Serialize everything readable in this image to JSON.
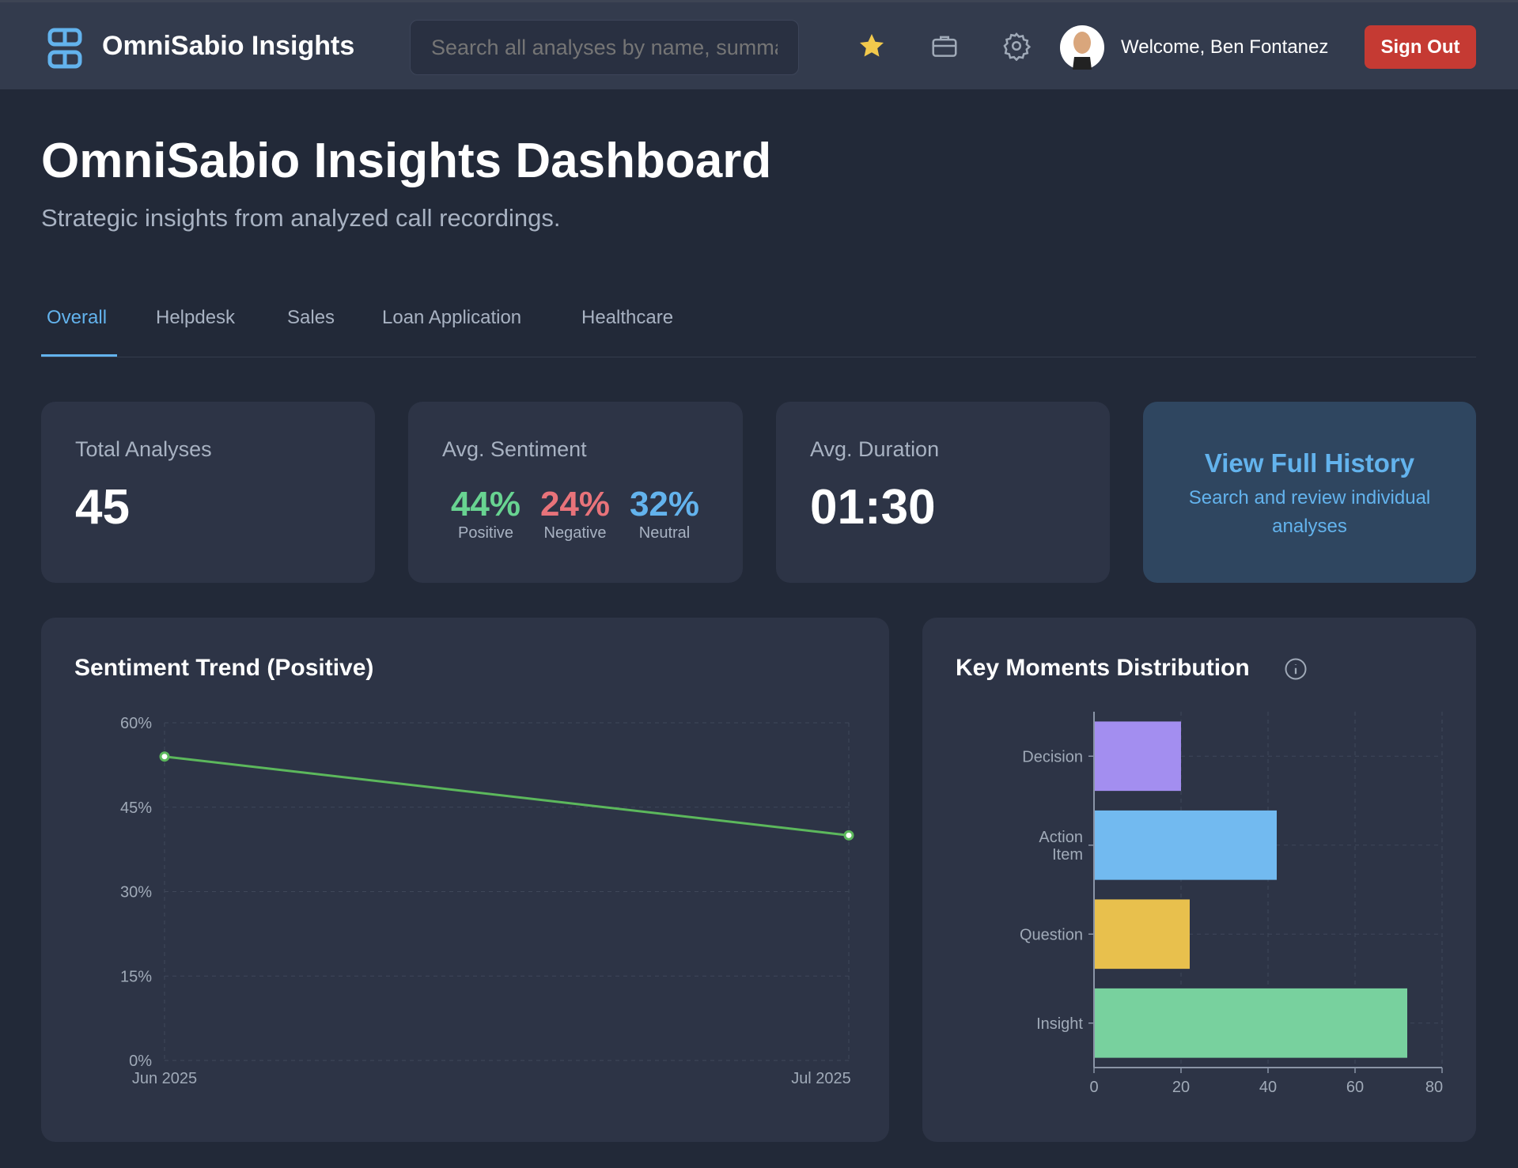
{
  "header": {
    "brand": "OmniSabio Insights",
    "search_placeholder": "Search all analyses by name, summary...",
    "welcome": "Welcome, Ben Fontanez",
    "sign_out": "Sign Out",
    "icons": [
      "logo-icon",
      "star-icon",
      "briefcase-icon",
      "gear-icon",
      "avatar"
    ]
  },
  "page": {
    "title": "OmniSabio Insights Dashboard",
    "subtitle": "Strategic insights from analyzed call recordings."
  },
  "tabs": [
    {
      "label": "Overall",
      "active": true
    },
    {
      "label": "Helpdesk"
    },
    {
      "label": "Sales"
    },
    {
      "label": "Loan Application"
    },
    {
      "label": "Healthcare"
    }
  ],
  "stats": {
    "total": {
      "label": "Total Analyses",
      "value": "45"
    },
    "sentiment": {
      "label": "Avg. Sentiment",
      "positive": "44%",
      "positive_label": "Positive",
      "negative": "24%",
      "negative_label": "Negative",
      "neutral": "32%",
      "neutral_label": "Neutral"
    },
    "duration": {
      "label": "Avg. Duration",
      "value": "01:30"
    },
    "history": {
      "title": "View Full History",
      "desc": "Search and review individual analyses"
    }
  },
  "colors": {
    "positive": "#68d391",
    "negative": "#e8737a",
    "neutral": "#63b3ed",
    "accent": "#63b3ed",
    "sign_out": "#c53a33"
  },
  "chart_data": [
    {
      "type": "line",
      "title": "Sentiment Trend (Positive)",
      "categories": [
        "Jun 2025",
        "Jul 2025"
      ],
      "series": [
        {
          "values": [
            54,
            40
          ],
          "color": "#5cb85c"
        }
      ],
      "ylim": [
        0,
        60
      ],
      "yticks": [
        "0%",
        "15%",
        "30%",
        "45%",
        "60%"
      ],
      "ytick_values": [
        0,
        15,
        30,
        45,
        60
      ],
      "grid": true
    },
    {
      "type": "bar",
      "orientation": "horizontal",
      "title": "Key Moments Distribution",
      "categories": [
        "Decision",
        "Action Item",
        "Question",
        "Insight"
      ],
      "values": [
        20,
        42,
        22,
        72
      ],
      "colors": [
        "#a38ef0",
        "#72baf0",
        "#e8c04d",
        "#78d19e"
      ],
      "xlim": [
        0,
        80
      ],
      "xticks": [
        "0",
        "20",
        "40",
        "60",
        "80"
      ],
      "xtick_values": [
        0,
        20,
        40,
        60,
        80
      ],
      "grid": true
    }
  ]
}
